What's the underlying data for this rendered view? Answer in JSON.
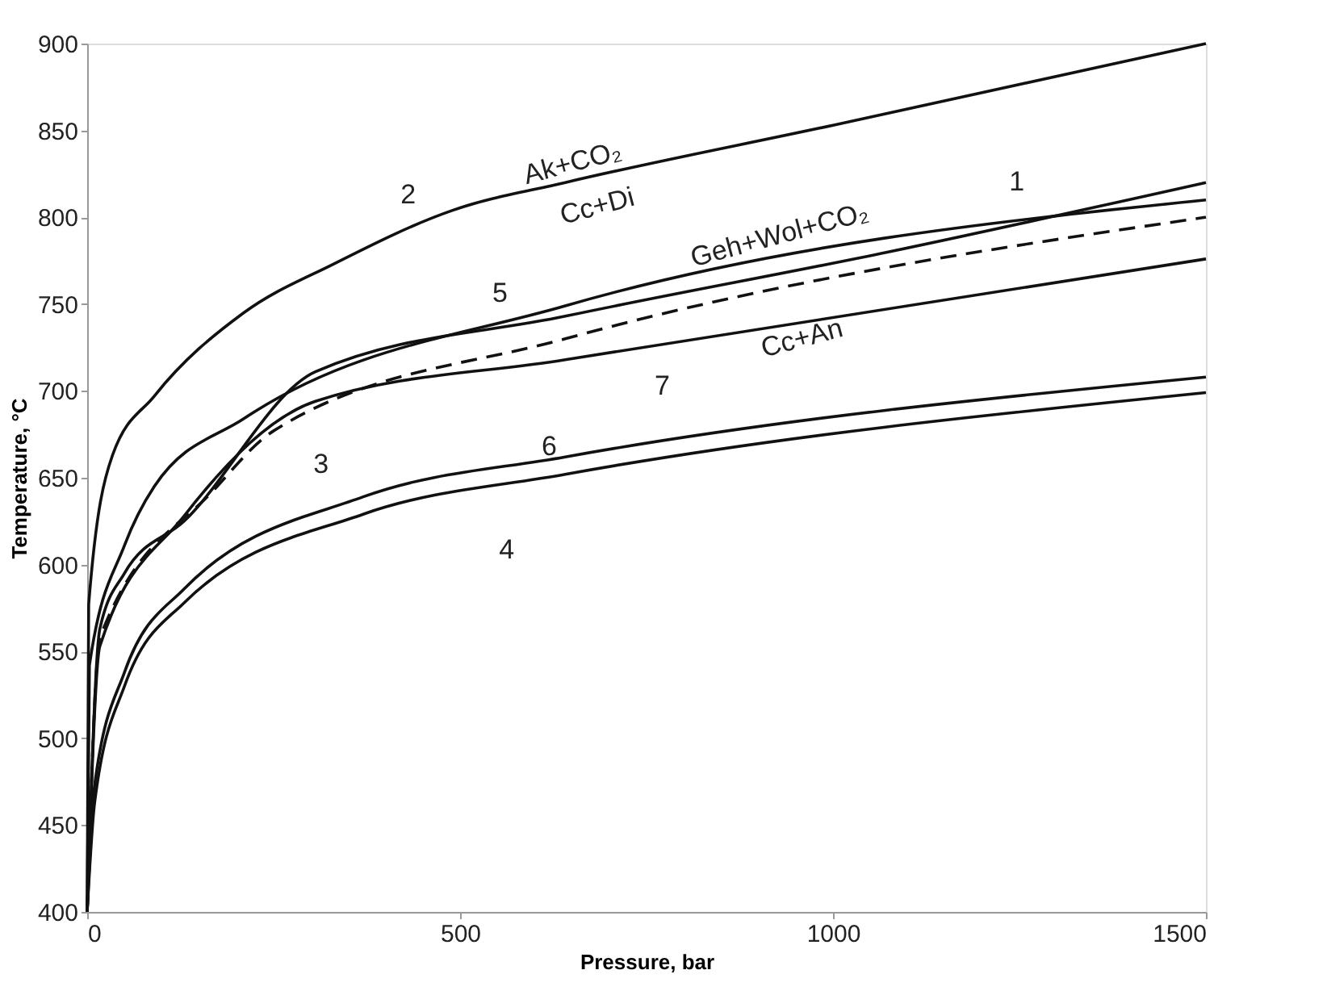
{
  "chart_data": {
    "type": "line",
    "xlabel": "Pressure, bar",
    "ylabel": "Temperature, °C",
    "xlim": [
      0,
      1500
    ],
    "xticks": [
      0,
      500,
      1000,
      1500
    ],
    "ylim": [
      400,
      900
    ],
    "yticks": [
      400,
      450,
      500,
      550,
      600,
      650,
      700,
      750,
      800,
      850,
      900
    ],
    "grid": false,
    "marker": "none",
    "series": [
      {
        "name": "2",
        "color": "#111111",
        "line_style": "solid",
        "x": [
          0,
          2,
          34,
          90,
          210,
          330,
          490,
          641,
          1000,
          1500
        ],
        "values": [
          400,
          577,
          663,
          697,
          745,
          773,
          804,
          820,
          853,
          900
        ]
      },
      {
        "name": "1",
        "color": "#111111",
        "line_style": "solid",
        "x": [
          0,
          17,
          50,
          130,
          306,
          641,
          1074,
          1500
        ],
        "values": [
          400,
          563,
          595,
          625,
          711,
          743,
          780,
          820
        ]
      },
      {
        "name": "5",
        "color": "#111111",
        "line_style": "solid",
        "x": [
          0,
          3,
          50,
          90,
          210,
          641,
          1500
        ],
        "values": [
          400,
          542,
          611,
          645,
          684,
          749,
          810
        ]
      },
      {
        "name": "3",
        "color": "#111111",
        "line_style": "dashed",
        "x": [
          0,
          17,
          170,
          250,
          641,
          1500
        ],
        "values": [
          400,
          558,
          643,
          677,
          730,
          800
        ]
      },
      {
        "name": "7",
        "color": "#111111",
        "line_style": "solid",
        "x": [
          0,
          17,
          130,
          306,
          641,
          1500
        ],
        "values": [
          400,
          553,
          628,
          694,
          718,
          776
        ]
      },
      {
        "name": "6",
        "color": "#111111",
        "line_style": "solid",
        "x": [
          0,
          10,
          50,
          130,
          370,
          641,
          1500
        ],
        "values": [
          400,
          473,
          538,
          586,
          639,
          662,
          708
        ]
      },
      {
        "name": "4",
        "color": "#111111",
        "line_style": "solid",
        "x": [
          0,
          10,
          50,
          130,
          370,
          641,
          1500
        ],
        "values": [
          400,
          463,
          530,
          578,
          629,
          652,
          699
        ]
      }
    ],
    "annotations": [
      "Ak+CO₂",
      "Cc+Di",
      "Geh+Wol+CO₂",
      "Cc+An"
    ]
  }
}
